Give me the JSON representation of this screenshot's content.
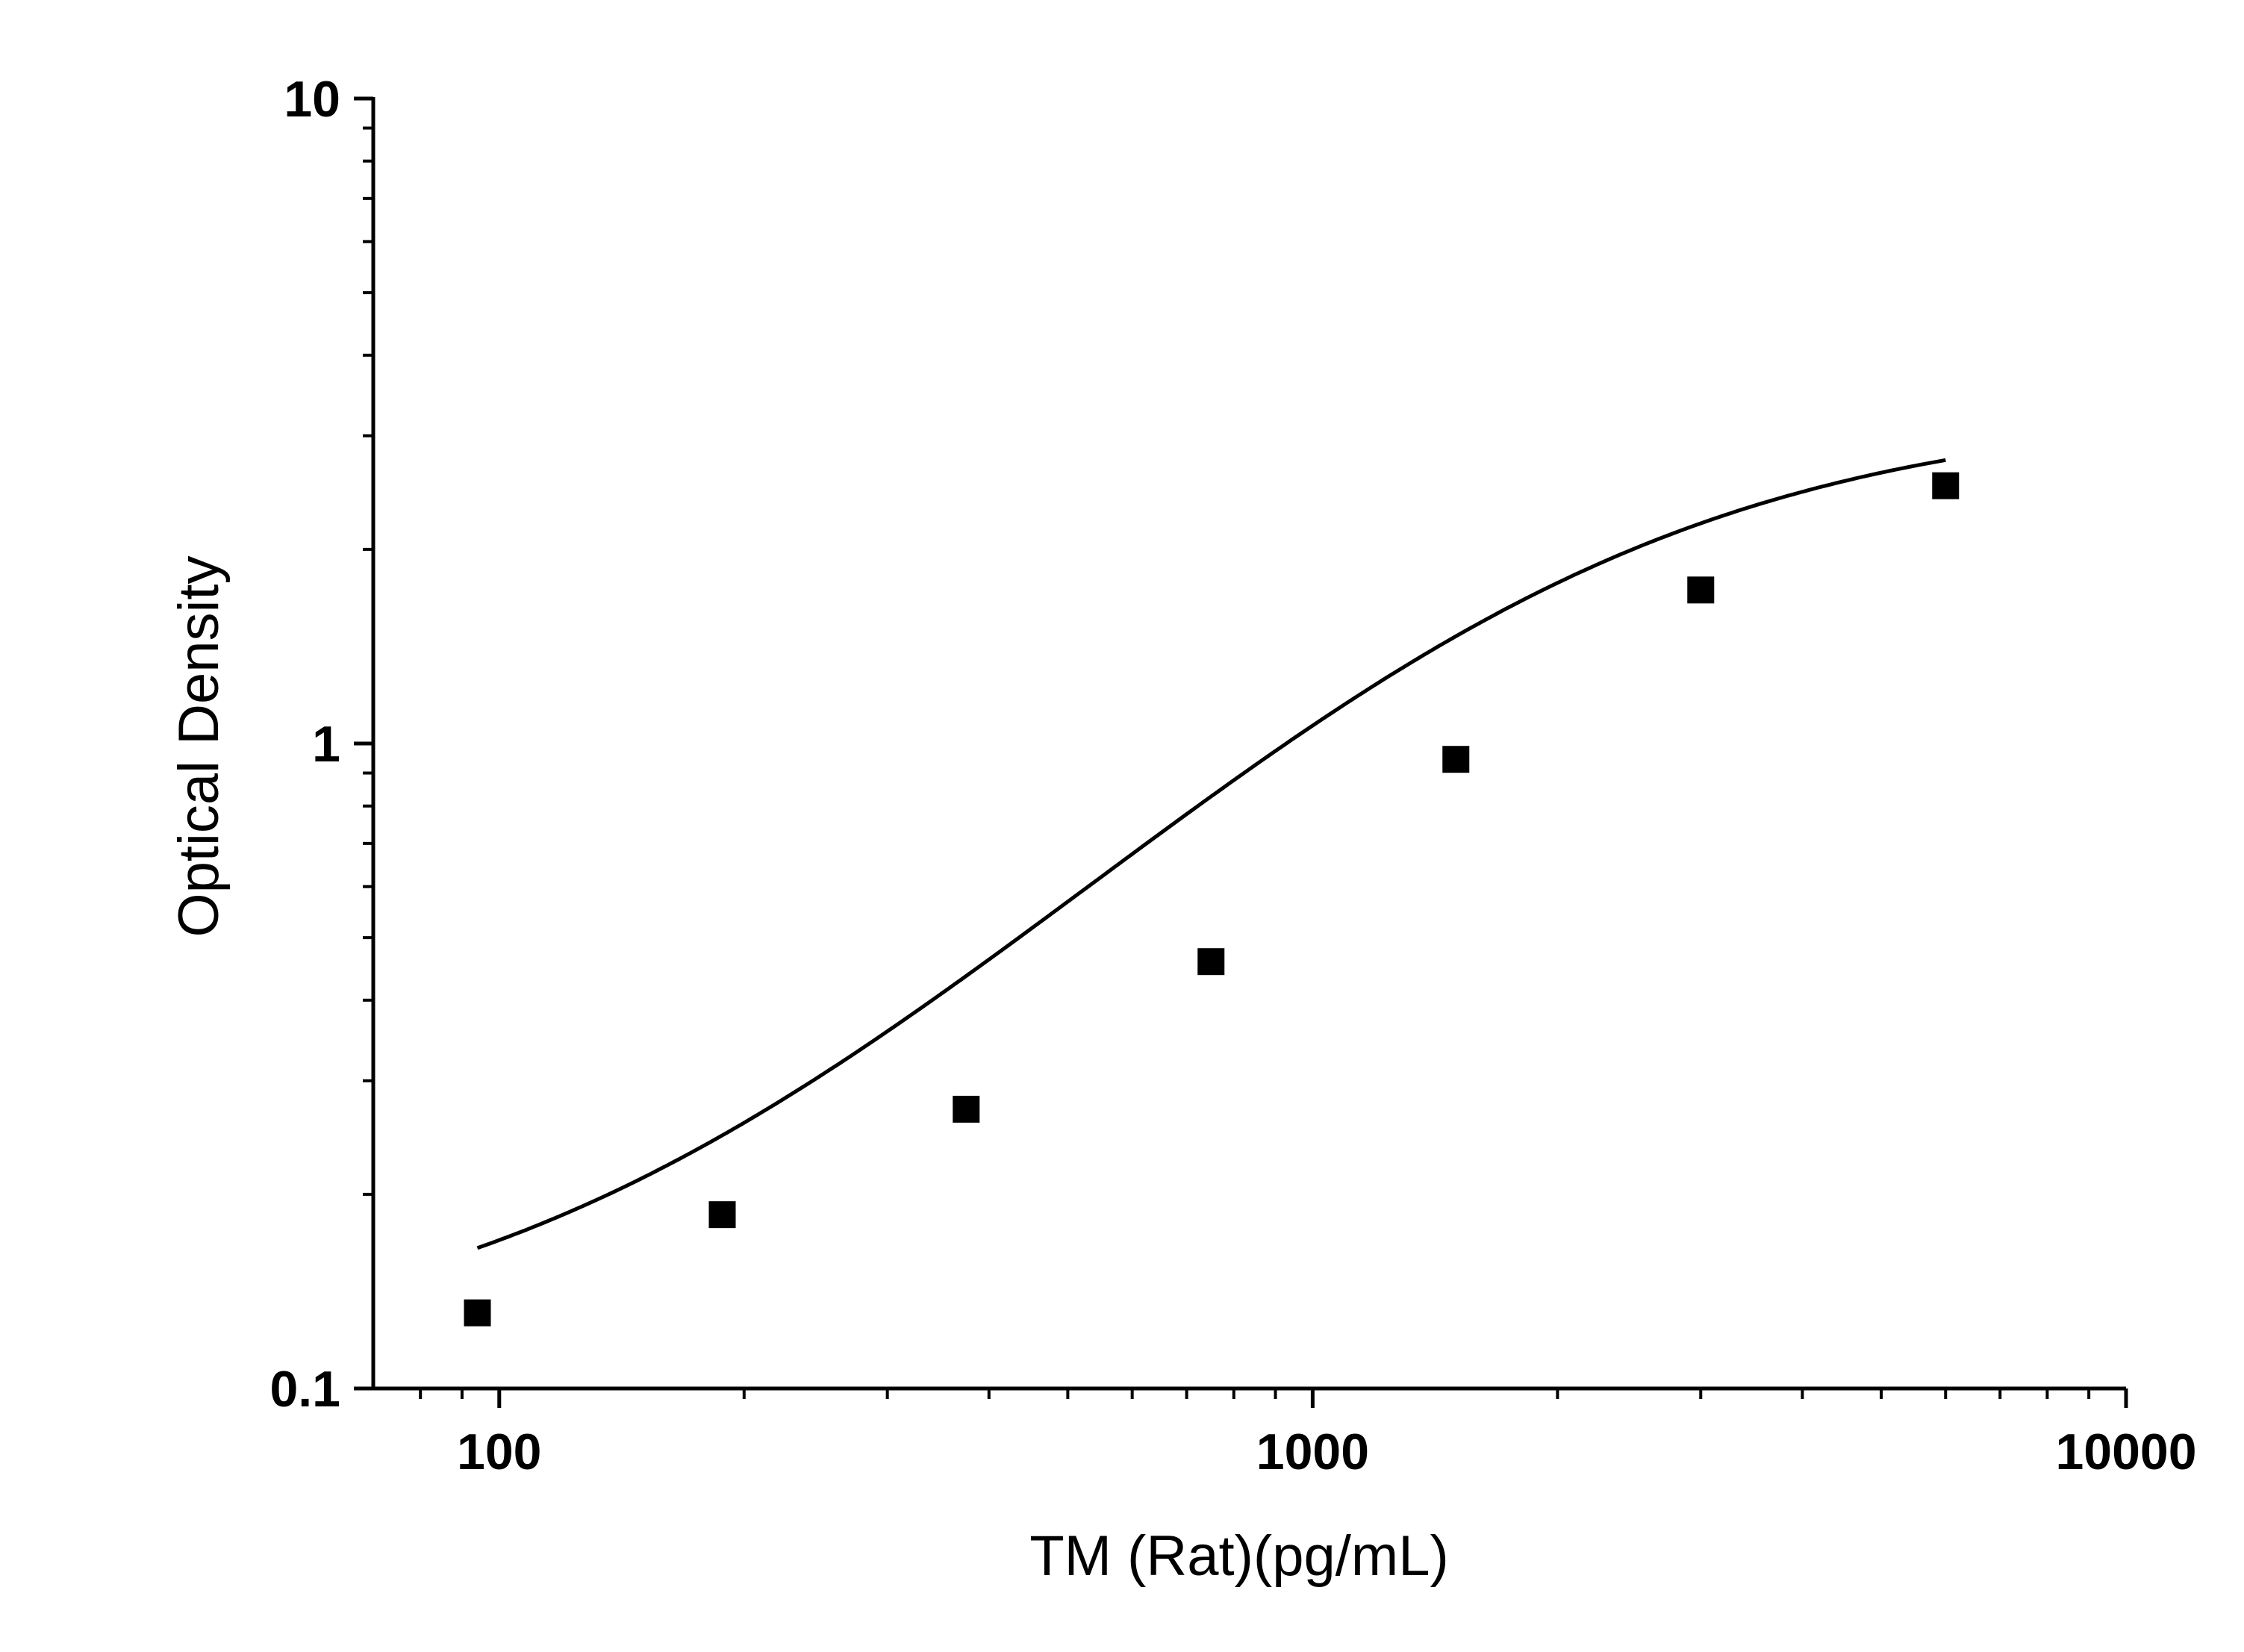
{
  "chart_data": {
    "type": "scatter",
    "title": "",
    "xlabel": "TM (Rat)(pg/mL)",
    "ylabel": "Optical Density",
    "x_scale": "log",
    "y_scale": "log",
    "xlim": [
      70,
      10000
    ],
    "ylim": [
      0.1,
      10
    ],
    "x_ticks": [
      {
        "value": 100,
        "label": "100"
      },
      {
        "value": 1000,
        "label": "1000"
      },
      {
        "value": 10000,
        "label": "10000"
      }
    ],
    "y_ticks": [
      {
        "value": 0.1,
        "label": "0.1"
      },
      {
        "value": 1,
        "label": "1"
      },
      {
        "value": 10,
        "label": "10"
      }
    ],
    "grid": false,
    "legend": "none",
    "series": [
      {
        "marker": "square",
        "color": "#000000",
        "points": [
          {
            "x": 94,
            "y": 0.131
          },
          {
            "x": 188,
            "y": 0.186
          },
          {
            "x": 375,
            "y": 0.271
          },
          {
            "x": 750,
            "y": 0.459
          },
          {
            "x": 1500,
            "y": 0.945
          },
          {
            "x": 3000,
            "y": 1.73
          },
          {
            "x": 6000,
            "y": 2.51
          }
        ]
      }
    ],
    "fit_curve": {
      "type": "4-parameter logistic",
      "color": "#000000",
      "x_range": [
        94,
        6000
      ],
      "bottom": 0.11,
      "top": 3.3,
      "ec50": 1875,
      "hill": 1.35
    }
  }
}
